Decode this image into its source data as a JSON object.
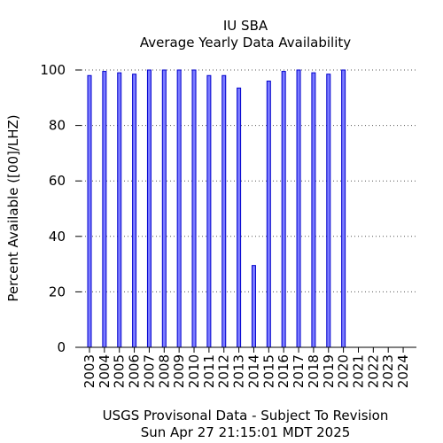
{
  "chart_data": {
    "type": "bar",
    "title": "IU SBA",
    "subtitle": "Average Yearly Data Availability",
    "xlabel": "",
    "ylabel": "Percent Available ([00]/LHZ)",
    "ylim": [
      0,
      100
    ],
    "yticks": [
      0,
      20,
      40,
      60,
      80,
      100
    ],
    "grid": "horizontal dotted",
    "categories": [
      "2003",
      "2004",
      "2005",
      "2006",
      "2007",
      "2008",
      "2009",
      "2010",
      "2011",
      "2012",
      "2013",
      "2014",
      "2015",
      "2016",
      "2017",
      "2018",
      "2019",
      "2020",
      "2021",
      "2022",
      "2023",
      "2024"
    ],
    "values": [
      98,
      99.5,
      99,
      98.5,
      100,
      100,
      100,
      100,
      98,
      98,
      93.5,
      29.5,
      96,
      99.5,
      100,
      99,
      98.5,
      100,
      null,
      null,
      null,
      null
    ],
    "bar_fill": "#7b7bff",
    "bar_stroke": "#0000cc"
  },
  "footer": {
    "line1": "USGS Provisonal Data - Subject To Revision",
    "line2": "Sun Apr 27 21:15:01 MDT 2025"
  }
}
